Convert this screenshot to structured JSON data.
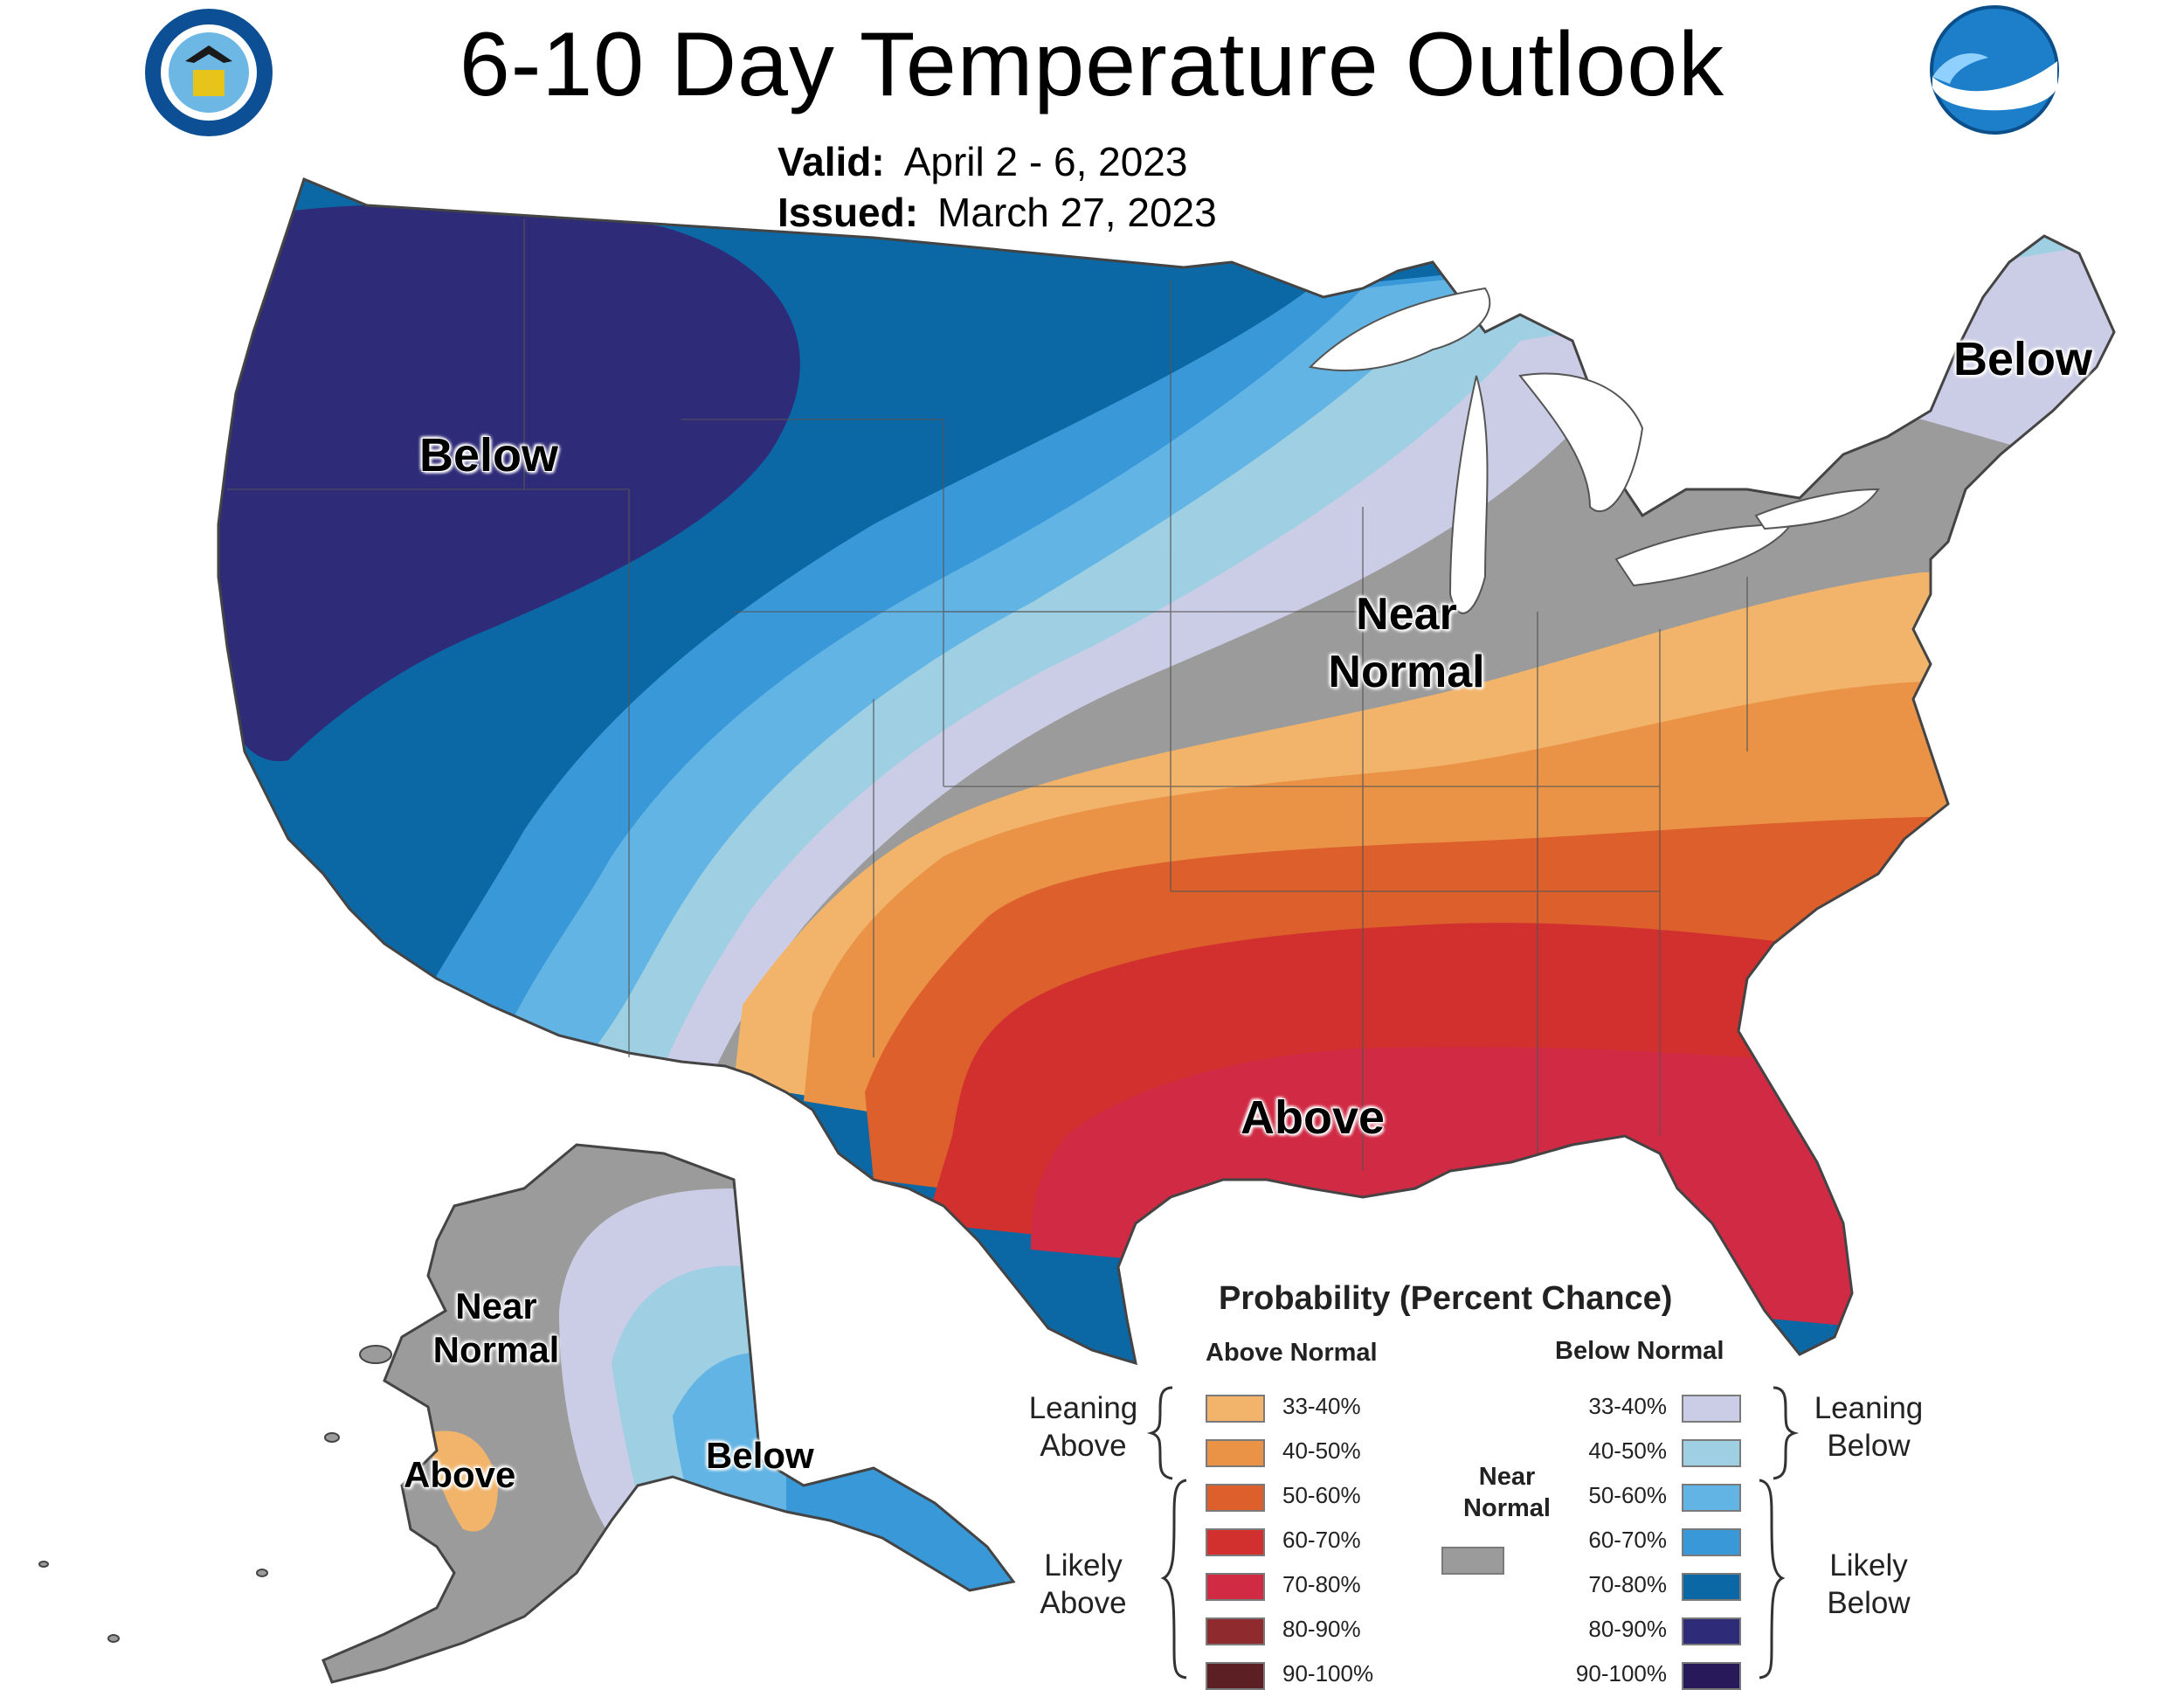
{
  "header": {
    "title": "6-10 Day Temperature Outlook",
    "valid_label": "Valid:",
    "valid_value": "April 2 - 6, 2023",
    "issued_label": "Issued:",
    "issued_value": "March 27, 2023"
  },
  "map_labels": {
    "conus_below_west": "Below",
    "conus_below_northeast": "Below",
    "conus_near_normal": "Near Normal",
    "conus_above": "Above",
    "alaska_near_normal": "Near Normal",
    "alaska_above": "Above",
    "alaska_below": "Below"
  },
  "legend": {
    "title": "Probability (Percent Chance)",
    "above_header": "Above Normal",
    "below_header": "Below Normal",
    "leaning_above": "Leaning Above",
    "likely_above": "Likely Above",
    "leaning_below": "Leaning Below",
    "likely_below": "Likely Below",
    "near_normal": "Near Normal",
    "near_normal_color": "#9b9b9b",
    "above": [
      {
        "range": "33-40%",
        "color": "#f2b46a"
      },
      {
        "range": "40-50%",
        "color": "#ea9347"
      },
      {
        "range": "50-60%",
        "color": "#dc5f2c"
      },
      {
        "range": "60-70%",
        "color": "#d1302f"
      },
      {
        "range": "70-80%",
        "color": "#d12a44"
      },
      {
        "range": "80-90%",
        "color": "#8f2a2f"
      },
      {
        "range": "90-100%",
        "color": "#5c1f24"
      }
    ],
    "below": [
      {
        "range": "33-40%",
        "color": "#cbcde6"
      },
      {
        "range": "40-50%",
        "color": "#9ecfe2"
      },
      {
        "range": "50-60%",
        "color": "#62b4e4"
      },
      {
        "range": "60-70%",
        "color": "#3898d8"
      },
      {
        "range": "70-80%",
        "color": "#0c68a4"
      },
      {
        "range": "80-90%",
        "color": "#2e2b78"
      },
      {
        "range": "90-100%",
        "color": "#27195a"
      }
    ]
  }
}
